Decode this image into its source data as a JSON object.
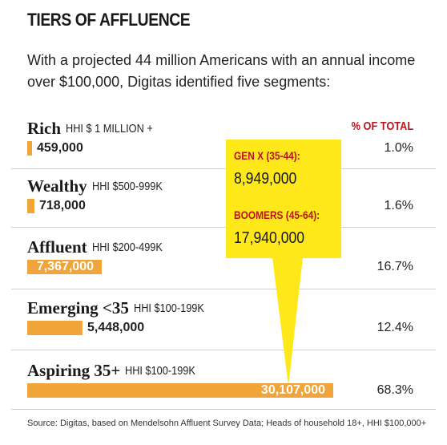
{
  "title": "TIERS OF AFFLUENCE",
  "subtitle": "With a projected 44 million Americans with an annual income over $100,000, Digitas identified five segments:",
  "pct_header": "% OF TOTAL",
  "callout": {
    "genx_label": "GEN X (35-44):",
    "genx_value": "8,949,000",
    "boomers_label": "BOOMERS (45-64):",
    "boomers_value": "17,940,000"
  },
  "source": "Source: Digitas, based on Mendelsohn Affluent Survey Data; Heads of household 18+, HHI $100,000+",
  "colors": {
    "bar": "#f0a43a",
    "callout": "#ffe81a",
    "accent": "#b8161c"
  },
  "chart_data": {
    "type": "bar",
    "orientation": "horizontal",
    "title": "TIERS OF AFFLUENCE",
    "categories": [
      "Rich",
      "Wealthy",
      "Affluent",
      "Emerging <35",
      "Aspiring 35+"
    ],
    "series": [
      {
        "values": [
          459000,
          718000,
          7367000,
          5448000,
          30107000
        ],
        "value_labels": [
          "459,000",
          "718,000",
          "7,367,000",
          "5,448,000",
          "30,107,000"
        ],
        "hhi": [
          "HHI $ 1 MILLION +",
          "HHI $500-999K",
          "HHI $200-499K",
          "HHI $100-199K",
          "HHI $100-199K"
        ],
        "percent_labels": [
          "1.0%",
          "1.6%",
          "16.7%",
          "12.4%",
          "68.3%"
        ],
        "percent_values": [
          1.0,
          1.6,
          16.7,
          12.4,
          68.3
        ]
      }
    ],
    "xlim": [
      0,
      30107000
    ]
  }
}
